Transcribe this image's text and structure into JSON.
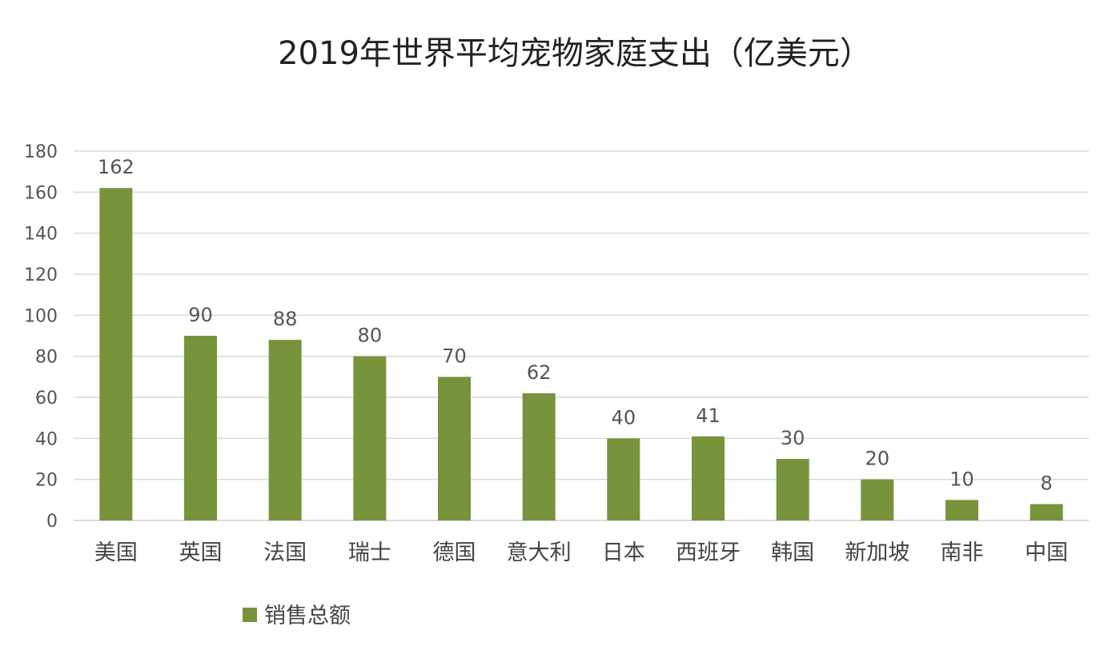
{
  "chart_data": {
    "type": "bar",
    "title": "2019年世界平均宠物家庭支出（亿美元）",
    "xlabel": "",
    "ylabel": "",
    "categories": [
      "美国",
      "英国",
      "法国",
      "瑞士",
      "德国",
      "意大利",
      "日本",
      "西班牙",
      "韩国",
      "新加坡",
      "南非",
      "中国"
    ],
    "series": [
      {
        "name": "销售总额",
        "values": [
          162,
          90,
          88,
          80,
          70,
          62,
          40,
          41,
          30,
          20,
          10,
          8
        ],
        "color": "#77933c"
      }
    ],
    "ylim": [
      0,
      180
    ],
    "yticks": [
      0,
      20,
      40,
      60,
      80,
      100,
      120,
      140,
      160,
      180
    ],
    "grid": true,
    "legend_position": "bottom-left",
    "data_labels": true
  }
}
